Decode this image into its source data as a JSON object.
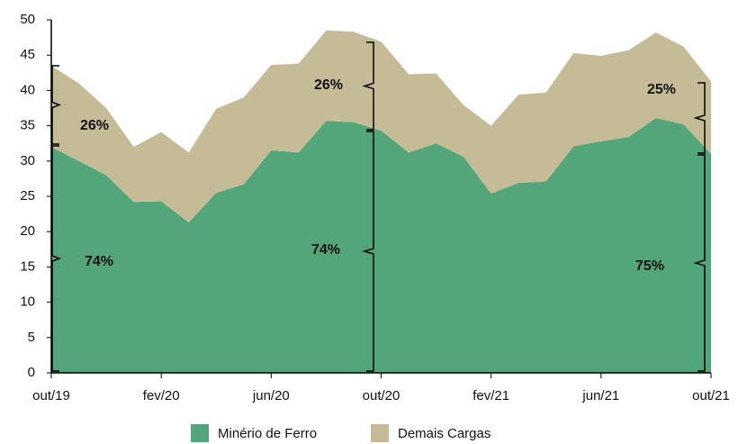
{
  "chart_data": {
    "type": "stacked-area",
    "categories": [
      "out/19",
      null,
      null,
      null,
      "fev/20",
      null,
      null,
      null,
      "jun/20",
      null,
      null,
      null,
      "out/20",
      null,
      null,
      null,
      "fev/21",
      null,
      null,
      null,
      "jun/21",
      null,
      null,
      null,
      "out/21"
    ],
    "series": [
      {
        "name": "Minério de Ferro",
        "color": "#52a67a",
        "values": [
          32.0,
          30.0,
          28.0,
          24.2,
          24.3,
          21.3,
          25.5,
          26.7,
          31.5,
          31.2,
          35.7,
          35.5,
          34.3,
          31.2,
          32.5,
          30.6,
          25.4,
          26.9,
          27.1,
          32.1,
          32.8,
          33.4,
          36.1,
          35.2,
          31.0
        ]
      },
      {
        "name": "Demais Cargas",
        "color": "#c5bc97",
        "values": [
          11.5,
          11.0,
          9.5,
          7.8,
          9.8,
          9.9,
          11.9,
          12.3,
          12.1,
          12.6,
          12.8,
          12.8,
          12.6,
          11.1,
          9.9,
          7.3,
          9.6,
          12.5,
          12.6,
          13.2,
          12.1,
          12.3,
          12.1,
          11.0,
          10.3
        ]
      }
    ],
    "ylim": [
      0,
      50
    ],
    "yticks": [
      0,
      5,
      10,
      15,
      20,
      25,
      30,
      35,
      40,
      45,
      50
    ],
    "annotations": [
      "26%",
      "74%",
      "74%",
      "26%",
      "25%",
      "75%"
    ]
  }
}
